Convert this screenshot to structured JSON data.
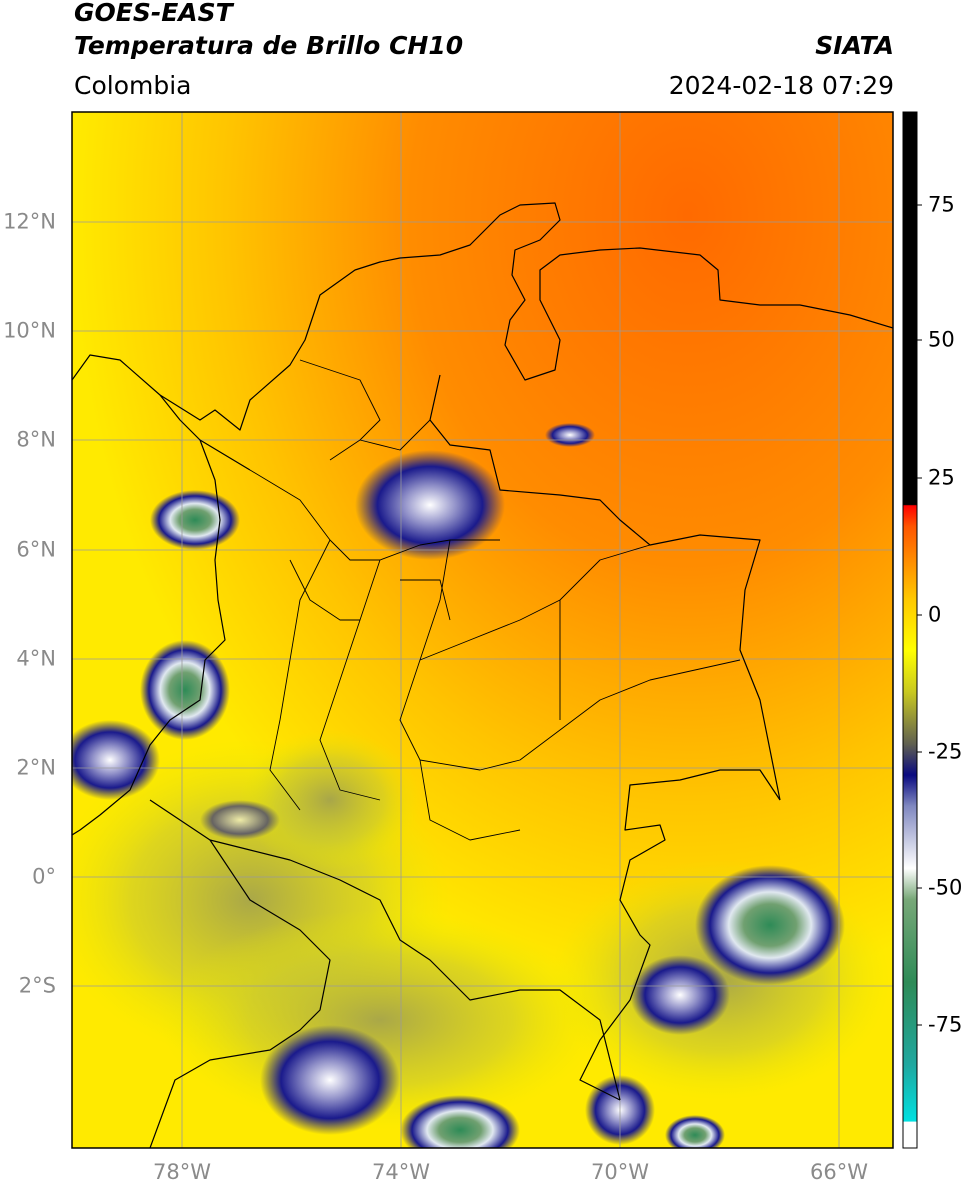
{
  "header": {
    "satellite": "GOES-EAST",
    "product": "Temperatura de Brillo CH10",
    "region": "Colombia",
    "organization": "SIATA",
    "datetime": "2024-02-18 07:29"
  },
  "map": {
    "latitude_labels": [
      "12°N",
      "10°N",
      "8°N",
      "6°N",
      "4°N",
      "2°N",
      "0°",
      "2°S"
    ],
    "longitude_labels": [
      "78°W",
      "74°W",
      "70°W",
      "66°W"
    ],
    "extent": {
      "lon_min": -80,
      "lon_max": -65,
      "lat_min": -5,
      "lat_max": 14
    }
  },
  "colorbar": {
    "tick_labels": [
      "75",
      "50",
      "25",
      "0",
      "-25",
      "-50",
      "-75"
    ],
    "range": [
      -95,
      90
    ],
    "colors": [
      "#ffffff",
      "#20d8d8",
      "#2e8b57",
      "#e8f0e8",
      "#8088c0",
      "#1a1a8c",
      "#9a9a5a",
      "#ffff00",
      "#ff9900",
      "#ff2200",
      "#000000"
    ]
  }
}
